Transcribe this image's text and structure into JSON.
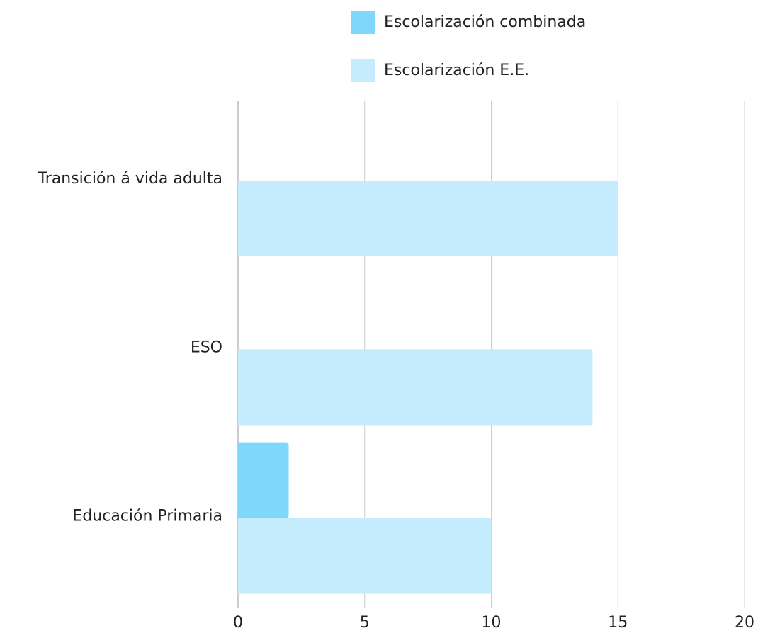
{
  "chart_data": {
    "type": "bar",
    "orientation": "horizontal",
    "categories": [
      "Transición á vida adulta",
      "ESO",
      "Educación Primaria"
    ],
    "series": [
      {
        "name": "Escolarización combinada",
        "color": "#7fd8fb",
        "values": [
          0,
          0,
          2
        ]
      },
      {
        "name": "Escolarización E.E.",
        "color": "#c4ecfc",
        "values": [
          15,
          14,
          10
        ]
      }
    ],
    "xlim": [
      0,
      20
    ],
    "xticks": [
      0,
      5,
      10,
      15,
      20
    ],
    "grid": true,
    "legend": "top"
  }
}
